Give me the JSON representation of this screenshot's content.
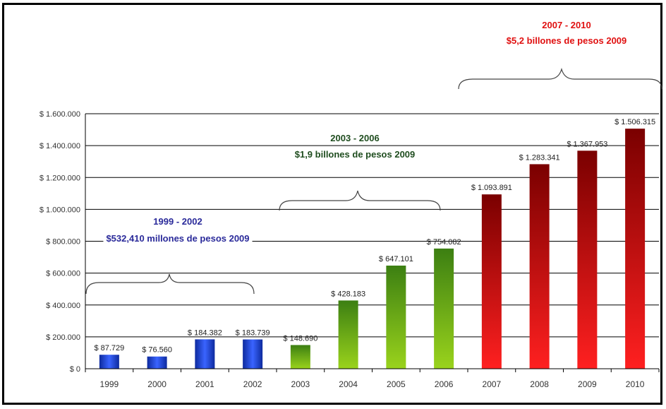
{
  "chart_data": {
    "type": "bar",
    "categories": [
      "1999",
      "2000",
      "2001",
      "2002",
      "2003",
      "2004",
      "2005",
      "2006",
      "2007",
      "2008",
      "2009",
      "2010"
    ],
    "values": [
      87729,
      76560,
      184382,
      183739,
      148690,
      428183,
      647101,
      754082,
      1093891,
      1283341,
      1367953,
      1506315
    ],
    "data_labels": [
      "$ 87.729",
      "$ 76.560",
      "$ 184.382",
      "$ 183.739",
      "$ 148.690",
      "$ 428.183",
      "$ 647.101",
      "$ 754.082",
      "$ 1.093.891",
      "$ 1.283.341",
      "$ 1.367.953",
      "$ 1.506.315"
    ],
    "y_ticks": [
      0,
      200000,
      400000,
      600000,
      800000,
      1000000,
      1200000,
      1400000,
      1600000
    ],
    "y_tick_labels": [
      "$ 0",
      "$ 200.000",
      "$ 400.000",
      "$ 600.000",
      "$ 800.000",
      "$ 1.000.000",
      "$ 1.200.000",
      "$ 1.400.000",
      "$ 1.600.000"
    ],
    "ylim": [
      0,
      1600000
    ],
    "grid": true,
    "colors": {
      "blue": "#1f3fbf",
      "green": "#4f9a10",
      "red": "#c00000"
    },
    "groups": [
      {
        "range": "1999 - 2002",
        "amount": "$532,410 millones de pesos 2009",
        "color": "#2a2a9a"
      },
      {
        "range": "2003 - 2006",
        "amount": "$1,9 billones de pesos 2009",
        "color": "#1f4d1f"
      },
      {
        "range": "2007 - 2010",
        "amount": "$5,2 billones de pesos 2009",
        "color": "#e01010"
      }
    ]
  }
}
